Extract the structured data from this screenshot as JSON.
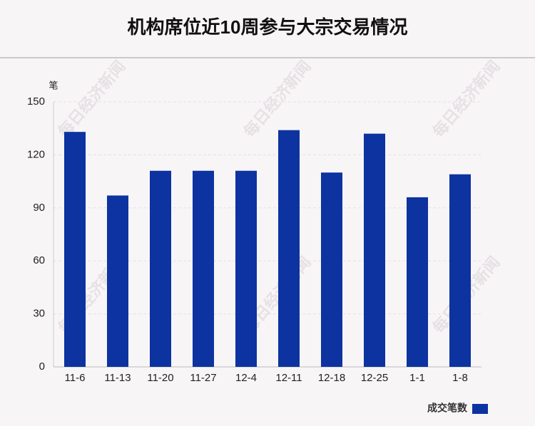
{
  "chart_data": {
    "type": "bar",
    "title": "机构席位近10周参与大宗交易情况",
    "y_unit": "笔",
    "categories": [
      "11-6",
      "11-13",
      "11-20",
      "11-27",
      "12-4",
      "12-11",
      "12-18",
      "12-25",
      "1-1",
      "1-8"
    ],
    "series": [
      {
        "name": "成交笔数",
        "color": "#0c339f",
        "values": [
          133,
          97,
          111,
          111,
          111,
          134,
          110,
          132,
          96,
          109
        ]
      }
    ],
    "ylim": [
      0,
      150
    ],
    "yticks": [
      0,
      30,
      60,
      90,
      120,
      150
    ],
    "grid": true,
    "legend": "bottom-right",
    "watermark": "每日经济新闻"
  }
}
